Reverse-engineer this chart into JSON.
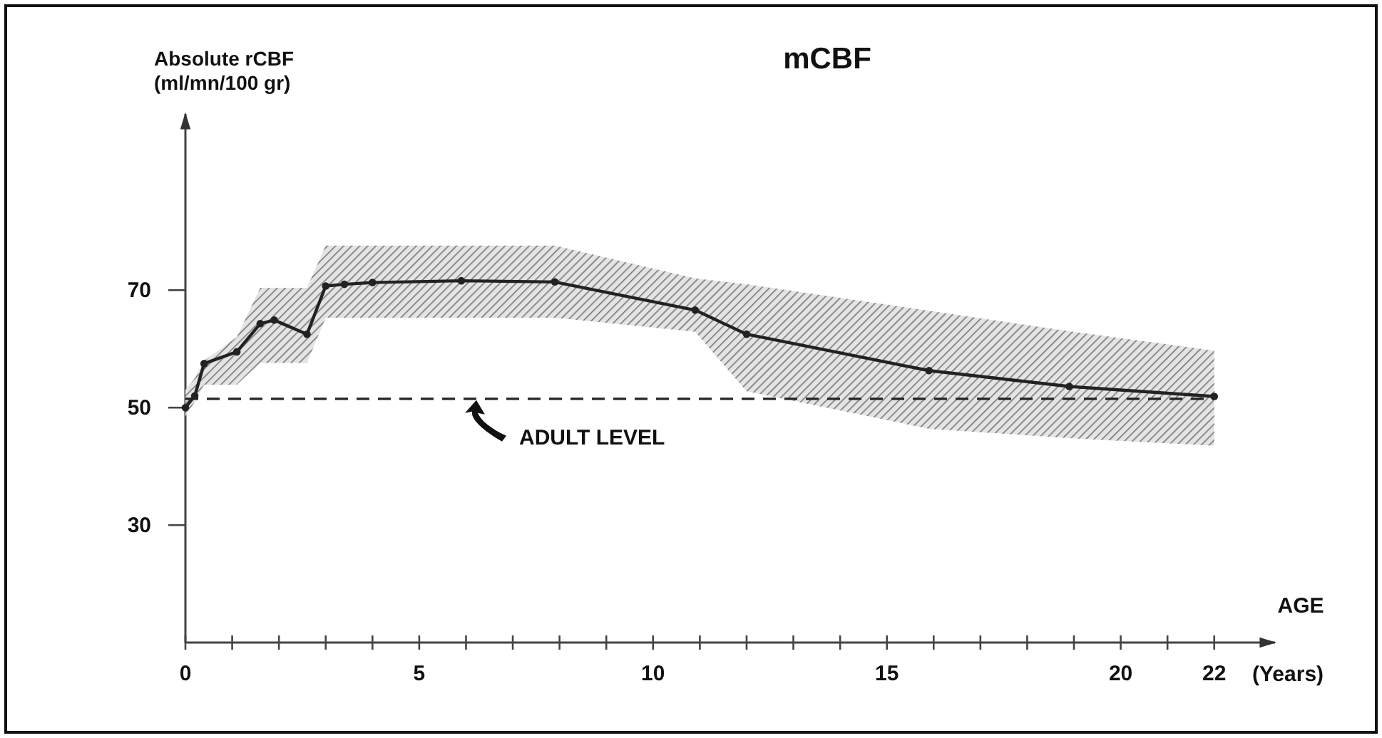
{
  "chart_data": {
    "type": "line",
    "title": "mCBF",
    "xlabel": "AGE",
    "ylabel": "Absolute rCBF\n(ml/mn/100 gr)",
    "annotations": [
      "(Years)"
    ],
    "x": [
      0,
      0.2,
      0.4,
      1.1,
      1.6,
      1.9,
      2.6,
      3.0,
      3.4,
      4.0,
      5.9,
      7.9,
      10.9,
      12,
      15.9,
      18.9,
      22
    ],
    "series": [
      {
        "color": "#222222",
        "values": [
          50,
          52,
          57.5,
          59.5,
          64.3,
          64.9,
          62.5,
          70.7,
          71,
          71.3,
          71.6,
          71.4,
          66.6,
          62.5,
          56.3,
          53.6,
          51.9
        ],
        "upper": [
          53,
          55,
          58,
          62,
          70.4,
          70.4,
          70.4,
          77.6,
          77.6,
          77.6,
          77.6,
          77.6,
          72,
          71,
          66.5,
          63,
          59.7
        ],
        "lower": [
          48.5,
          51,
          53.9,
          53.9,
          57.6,
          57.6,
          57.6,
          65.3,
          65.3,
          65.3,
          65.3,
          65.3,
          62.9,
          52.8,
          46.4,
          44.8,
          43.5
        ]
      }
    ],
    "ref_lines": [
      {
        "axis": "y",
        "value": 51.5,
        "label": "ADULT LEVEL",
        "line_style": "dashed",
        "color": "#222222"
      }
    ],
    "xlim": [
      0,
      23.3
    ],
    "ylim": [
      10,
      100
    ],
    "xticks": [
      0,
      {
        "value": 1,
        "label": null
      },
      {
        "value": 2,
        "label": null
      },
      {
        "value": 3,
        "label": null
      },
      {
        "value": 4,
        "label": null
      },
      5,
      {
        "value": 6,
        "label": null
      },
      {
        "value": 7,
        "label": null
      },
      {
        "value": 8,
        "label": null
      },
      {
        "value": 9,
        "label": null
      },
      10,
      {
        "value": 11,
        "label": null
      },
      {
        "value": 12,
        "label": null
      },
      {
        "value": 13,
        "label": null
      },
      {
        "value": 14,
        "label": null
      },
      15,
      {
        "value": 16,
        "label": null
      },
      {
        "value": 17,
        "label": null
      },
      {
        "value": 18,
        "label": null
      },
      {
        "value": 19,
        "label": null
      },
      20,
      {
        "value": 21,
        "label": null
      },
      22
    ],
    "yticks": [
      30,
      50,
      70
    ],
    "marker": "circle",
    "line_style": "solid",
    "grid": false
  }
}
